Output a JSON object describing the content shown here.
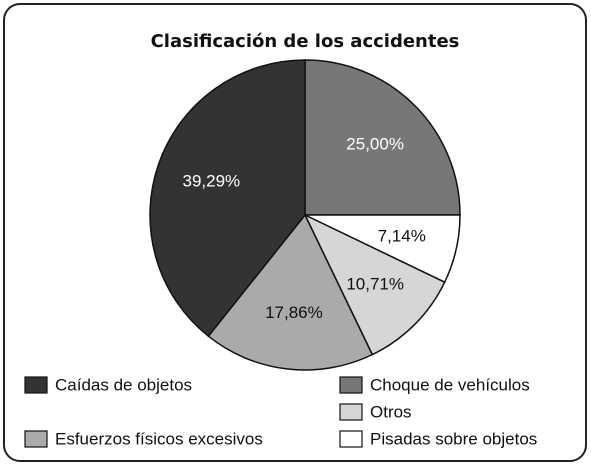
{
  "chart_data": {
    "type": "pie",
    "title": "Clasificación de los accidentes",
    "categories": [
      "Choque de vehículos",
      "Pisadas sobre objetos",
      "Otros",
      "Esfuerzos físicos excesivos",
      "Caídas de objetos"
    ],
    "values": [
      25.0,
      7.14,
      10.71,
      17.86,
      39.29
    ],
    "value_labels": [
      "25,00%",
      "7,14%",
      "10,71%",
      "17,86%",
      "39,29%"
    ],
    "colors": [
      "#777777",
      "#ffffff",
      "#d6d6d6",
      "#aaaaaa",
      "#333333"
    ],
    "legend": "bottom"
  }
}
